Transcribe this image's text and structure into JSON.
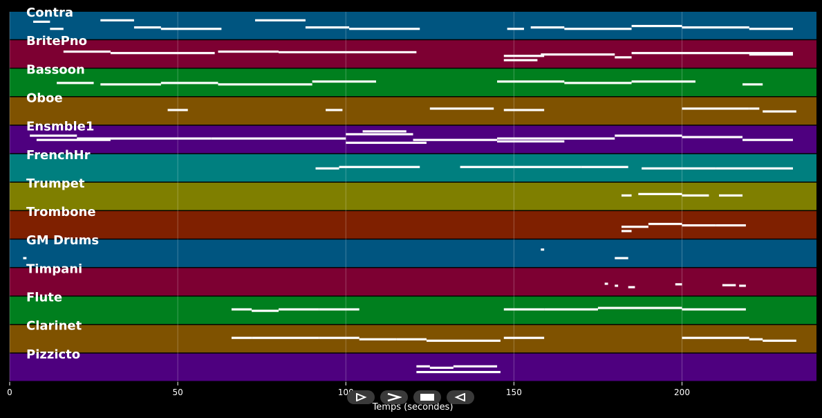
{
  "chart_data": {
    "type": "piano-roll",
    "xlabel": "Temps (secondes)",
    "xlim": [
      0,
      240
    ],
    "xticks": [
      0,
      50,
      100,
      150,
      200
    ],
    "grid": true,
    "tracks": [
      {
        "name": "Contra",
        "color": "#005580",
        "segments": [
          [
            7,
            12,
            0.35
          ],
          [
            12,
            16,
            0.6
          ],
          [
            27,
            37,
            0.3
          ],
          [
            37,
            45,
            0.55
          ],
          [
            45,
            63,
            0.6
          ],
          [
            73,
            88,
            0.3
          ],
          [
            88,
            101,
            0.55
          ],
          [
            101,
            122,
            0.6
          ],
          [
            148,
            153,
            0.6
          ],
          [
            155,
            165,
            0.55
          ],
          [
            165,
            185,
            0.6
          ],
          [
            185,
            200,
            0.5
          ],
          [
            200,
            220,
            0.55
          ],
          [
            220,
            233,
            0.6
          ]
        ]
      },
      {
        "name": "BritePno",
        "color": "#7d0032",
        "segments": [
          [
            16,
            30,
            0.4
          ],
          [
            30,
            61,
            0.45
          ],
          [
            62,
            80,
            0.4
          ],
          [
            80,
            121,
            0.42
          ],
          [
            147,
            159,
            0.55
          ],
          [
            147,
            157,
            0.7
          ],
          [
            158,
            180,
            0.5
          ],
          [
            180,
            185,
            0.6
          ],
          [
            185,
            233,
            0.45
          ],
          [
            220,
            233,
            0.5
          ]
        ]
      },
      {
        "name": "Bassoon",
        "color": "#007f1e",
        "segments": [
          [
            14,
            25,
            0.5
          ],
          [
            27,
            45,
            0.55
          ],
          [
            45,
            62,
            0.5
          ],
          [
            62,
            90,
            0.55
          ],
          [
            90,
            109,
            0.45
          ],
          [
            145,
            165,
            0.45
          ],
          [
            165,
            185,
            0.5
          ],
          [
            185,
            204,
            0.45
          ],
          [
            218,
            224,
            0.55
          ]
        ]
      },
      {
        "name": "Oboe",
        "color": "#7f5200",
        "segments": [
          [
            47,
            53,
            0.45
          ],
          [
            94,
            99,
            0.45
          ],
          [
            125,
            144,
            0.4
          ],
          [
            147,
            159,
            0.45
          ],
          [
            200,
            220,
            0.4
          ],
          [
            220,
            223,
            0.4
          ],
          [
            224,
            234,
            0.5
          ]
        ]
      },
      {
        "name": "Ensmble1",
        "color": "#4e007f",
        "segments": [
          [
            6,
            20,
            0.35
          ],
          [
            8,
            30,
            0.5
          ],
          [
            20,
            60,
            0.45
          ],
          [
            60,
            100,
            0.45
          ],
          [
            100,
            120,
            0.3
          ],
          [
            100,
            124,
            0.6
          ],
          [
            105,
            118,
            0.2
          ],
          [
            120,
            145,
            0.5
          ],
          [
            145,
            180,
            0.45
          ],
          [
            145,
            165,
            0.55
          ],
          [
            180,
            200,
            0.35
          ],
          [
            200,
            218,
            0.4
          ],
          [
            218,
            233,
            0.5
          ]
        ]
      },
      {
        "name": "FrenchHr",
        "color": "#007f7f",
        "segments": [
          [
            91,
            98,
            0.5
          ],
          [
            98,
            122,
            0.45
          ],
          [
            134,
            150,
            0.45
          ],
          [
            150,
            170,
            0.45
          ],
          [
            170,
            184,
            0.45
          ],
          [
            188,
            210,
            0.5
          ],
          [
            210,
            233,
            0.5
          ]
        ]
      },
      {
        "name": "Trumpet",
        "color": "#7f7f00",
        "segments": [
          [
            182,
            185,
            0.45
          ],
          [
            187,
            200,
            0.4
          ],
          [
            200,
            208,
            0.45
          ],
          [
            211,
            218,
            0.45
          ]
        ]
      },
      {
        "name": "Trombone",
        "color": "#7f2000",
        "segments": [
          [
            182,
            190,
            0.55
          ],
          [
            190,
            200,
            0.45
          ],
          [
            200,
            210,
            0.5
          ],
          [
            210,
            219,
            0.5
          ],
          [
            182,
            185,
            0.7
          ]
        ]
      },
      {
        "name": "GM Drums",
        "color": "#005580",
        "segments": [
          [
            4,
            5,
            0.65
          ],
          [
            158,
            159,
            0.35
          ],
          [
            180,
            184,
            0.65
          ]
        ]
      },
      {
        "name": "Timpani",
        "color": "#7d0032",
        "segments": [
          [
            177,
            178,
            0.55
          ],
          [
            180,
            181,
            0.62
          ],
          [
            184,
            186,
            0.67
          ],
          [
            198,
            200,
            0.57
          ],
          [
            212,
            216,
            0.6
          ],
          [
            217,
            219,
            0.62
          ]
        ]
      },
      {
        "name": "Flute",
        "color": "#007f1e",
        "segments": [
          [
            66,
            72,
            0.45
          ],
          [
            72,
            80,
            0.5
          ],
          [
            80,
            92,
            0.45
          ],
          [
            92,
            104,
            0.45
          ],
          [
            147,
            159,
            0.45
          ],
          [
            159,
            175,
            0.45
          ],
          [
            175,
            200,
            0.4
          ],
          [
            200,
            219,
            0.45
          ]
        ]
      },
      {
        "name": "Clarinet",
        "color": "#7f5200",
        "segments": [
          [
            66,
            72,
            0.45
          ],
          [
            72,
            80,
            0.45
          ],
          [
            80,
            92,
            0.45
          ],
          [
            92,
            104,
            0.45
          ],
          [
            104,
            115,
            0.5
          ],
          [
            115,
            124,
            0.5
          ],
          [
            124,
            146,
            0.55
          ],
          [
            147,
            159,
            0.45
          ],
          [
            200,
            220,
            0.45
          ],
          [
            220,
            224,
            0.5
          ],
          [
            224,
            234,
            0.55
          ]
        ]
      },
      {
        "name": "Pizzicto",
        "color": "#4e007f",
        "segments": [
          [
            121,
            125,
            0.45
          ],
          [
            125,
            132,
            0.5
          ],
          [
            132,
            145,
            0.45
          ],
          [
            121,
            146,
            0.65
          ]
        ]
      }
    ]
  },
  "controls": [
    {
      "name": "play",
      "glyph": "play"
    },
    {
      "name": "fast-forward",
      "glyph": "ff"
    },
    {
      "name": "stop",
      "glyph": "stop"
    },
    {
      "name": "rewind",
      "glyph": "rew"
    }
  ]
}
